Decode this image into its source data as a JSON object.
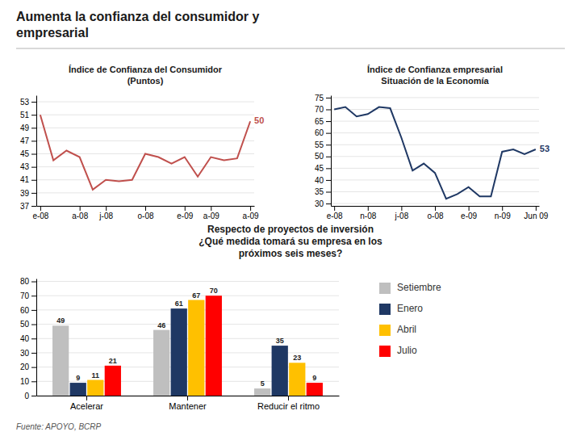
{
  "title": "Aumenta la confianza del consumidor y\nempresarial",
  "source": "Fuente: APOYO, BCRP",
  "chart_data": [
    {
      "type": "line",
      "title": "Índice de Confianza del Consumidor\n(Puntos)",
      "categories": [
        "e-08",
        null,
        null,
        "a-08",
        null,
        "j-08",
        null,
        null,
        "o-08",
        null,
        null,
        "e-09",
        null,
        "a-09",
        null,
        null,
        "a-09"
      ],
      "values": [
        51,
        44,
        45.5,
        44.5,
        39.5,
        41.0,
        40.8,
        41.0,
        45.0,
        44.5,
        43.5,
        44.5,
        41.5,
        44.5,
        44.0,
        44.3,
        50
      ],
      "color": "#c0504d",
      "ylim": [
        37,
        54
      ],
      "yticks": [
        37,
        39,
        41,
        43,
        45,
        47,
        49,
        51,
        53
      ],
      "grid": true,
      "annotations": [
        "50"
      ]
    },
    {
      "type": "line",
      "title": "Índice de Confianza empresarial\nSituación de la Economía",
      "categories": [
        "e-08",
        null,
        null,
        "n-08",
        null,
        null,
        "j-08",
        null,
        null,
        "o-08",
        null,
        null,
        "e-09",
        null,
        null,
        "n-09",
        null,
        null,
        "Jun 09"
      ],
      "values": [
        70,
        71,
        67,
        68,
        71,
        70.5,
        58,
        44,
        47,
        43,
        32,
        34,
        37,
        33,
        33,
        52,
        53,
        51,
        53
      ],
      "color": "#1f3864",
      "ylim": [
        29,
        76
      ],
      "yticks": [
        30,
        35,
        40,
        45,
        50,
        55,
        60,
        65,
        70,
        75
      ],
      "grid": true,
      "annotations": [
        "53"
      ]
    },
    {
      "type": "bar",
      "title": "Respecto de proyectos de inversión\n¿Qué medida tomará su empresa en los\npróximos seis meses?",
      "categories": [
        "Acelerar",
        "Mantener",
        "Reducir el ritmo"
      ],
      "series": [
        {
          "name": "Setiembre",
          "color": "#bfbfbf",
          "values": [
            49,
            46,
            5
          ]
        },
        {
          "name": "Enero",
          "color": "#1f3864",
          "values": [
            9,
            61,
            35
          ]
        },
        {
          "name": "Abril",
          "color": "#ffc000",
          "values": [
            11,
            67,
            23
          ]
        },
        {
          "name": "Julio",
          "color": "#ff0000",
          "values": [
            21,
            70,
            9
          ]
        }
      ],
      "ylim": [
        0,
        82
      ],
      "yticks": [
        0,
        10,
        20,
        30,
        40,
        50,
        60,
        70,
        80
      ],
      "grid": true,
      "data_labels": true,
      "legend": "right"
    }
  ]
}
